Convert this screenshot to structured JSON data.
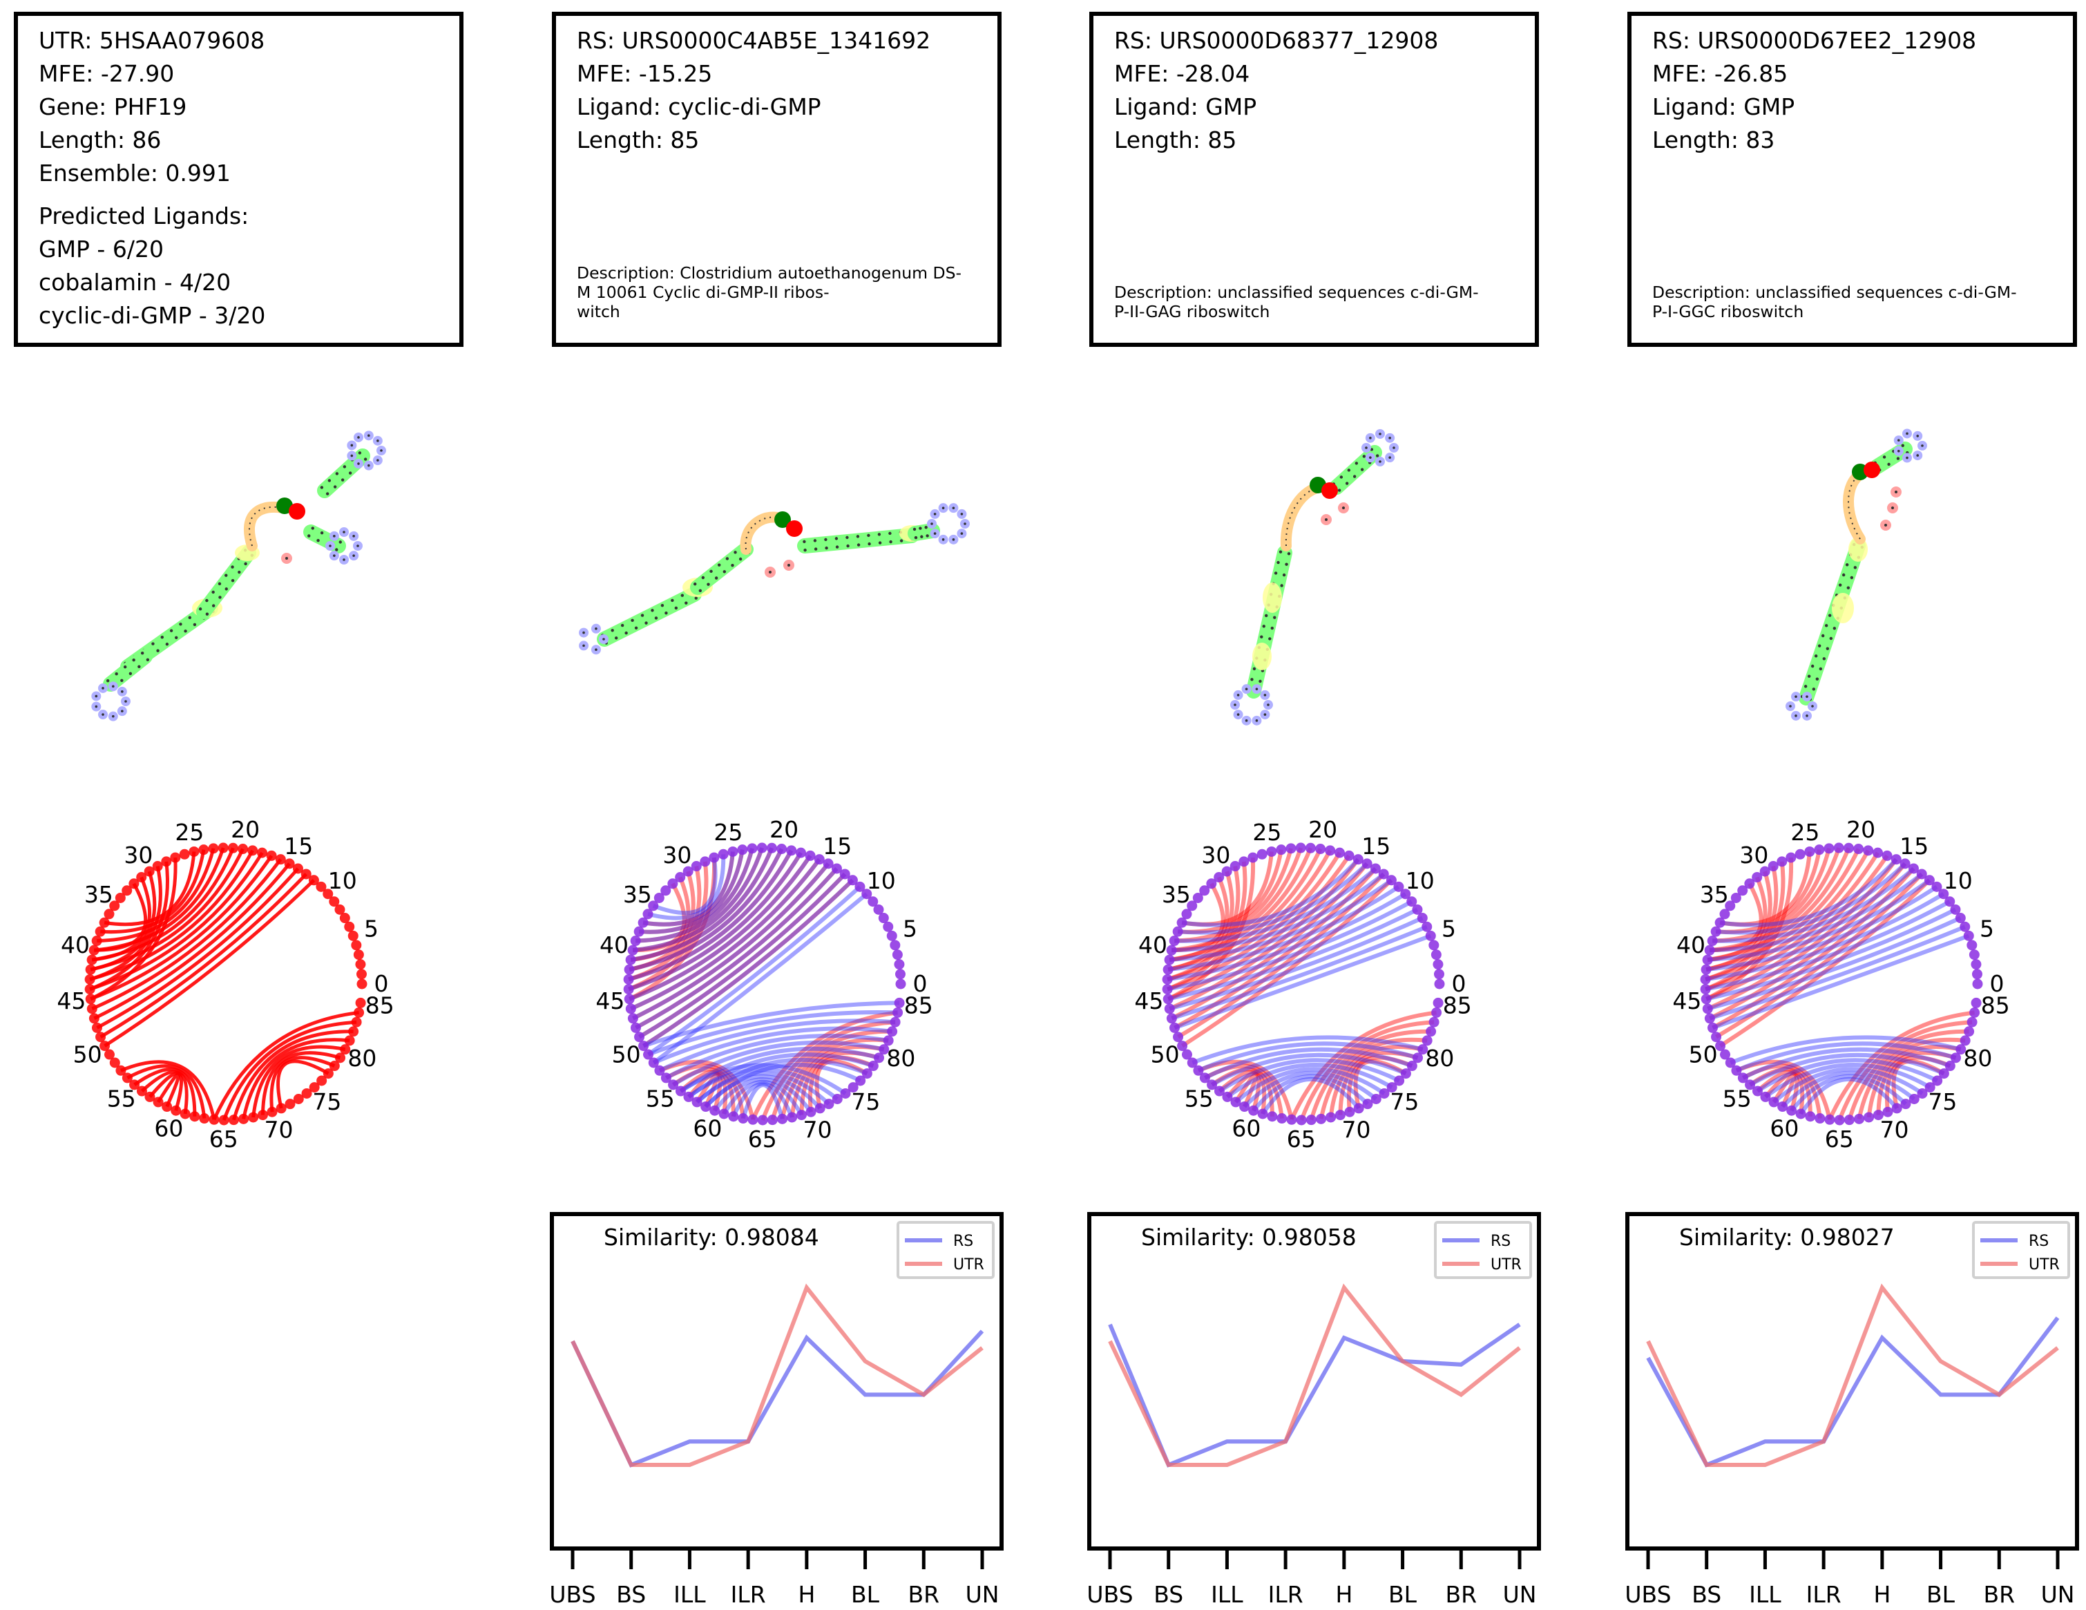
{
  "panels": [
    {
      "info": {
        "lines": [
          "UTR: 5HSAA079608",
          "MFE: -27.90",
          "Gene: PHF19",
          "Length: 86",
          "Ensemble: 0.991"
        ],
        "predicted_header": "Predicted Ligands:",
        "predicted": [
          "GMP - 6/20",
          "cobalamin - 4/20",
          "cyclic-di-GMP - 3/20"
        ]
      }
    },
    {
      "info": {
        "lines": [
          "RS: URS0000C4AB5E_1341692",
          "MFE: -15.25",
          "Ligand: cyclic-di-GMP",
          "Length: 85"
        ],
        "description": [
          "Description: Clostridium autoethanogenum DS-",
          "M 10061 Cyclic di-GMP-II ribos-",
          "witch"
        ]
      }
    },
    {
      "info": {
        "lines": [
          "RS: URS0000D68377_12908",
          "MFE: -28.04",
          "Ligand: GMP",
          "Length: 85"
        ],
        "description": [
          "Description: unclassified sequences c-di-GM-",
          "P-II-GAG riboswitch"
        ]
      }
    },
    {
      "info": {
        "lines": [
          "RS: URS0000D67EE2_12908",
          "MFE: -26.85",
          "Ligand: GMP",
          "Length: 83"
        ],
        "description": [
          "Description: unclassified sequences c-di-GM-",
          "P-I-GGC riboswitch"
        ]
      }
    }
  ],
  "colors": {
    "rs": "#5b5bf0",
    "utr": "#f06a6a",
    "utr_arc": "#ff0000",
    "stem": "#80ff80",
    "hairpin": "#b0b0ff",
    "interior": "#ffff99",
    "multiloop": "#ffd08a",
    "unpaired": "#ffa0a0",
    "start": "#008000",
    "end": "#ff0000",
    "purple": "#8a2be2"
  },
  "arc_diagrams": [
    {
      "ticks": [
        "0",
        "5",
        "10",
        "15",
        "20",
        "25",
        "30",
        "35",
        "40",
        "45",
        "50",
        "55",
        "60",
        "65",
        "70",
        "75",
        "80",
        "85"
      ],
      "mode": "utr"
    },
    {
      "ticks": [
        "0",
        "5",
        "10",
        "15",
        "20",
        "25",
        "30",
        "35",
        "40",
        "45",
        "50",
        "55",
        "60",
        "65",
        "70",
        "75",
        "80",
        "85"
      ],
      "mode": "overlay"
    },
    {
      "ticks": [
        "0",
        "5",
        "10",
        "15",
        "20",
        "25",
        "30",
        "35",
        "40",
        "45",
        "50",
        "55",
        "60",
        "65",
        "70",
        "75",
        "80",
        "85"
      ],
      "mode": "overlay"
    },
    {
      "ticks": [
        "0",
        "5",
        "10",
        "15",
        "20",
        "25",
        "30",
        "35",
        "40",
        "45",
        "50",
        "55",
        "60",
        "65",
        "70",
        "75",
        "80",
        "85"
      ],
      "mode": "overlay"
    }
  ],
  "chart_data": [
    {
      "type": "line",
      "categories": [
        "UBS",
        "BS",
        "ILL",
        "ILR",
        "H",
        "BL",
        "BR",
        "UN"
      ],
      "annotation": "Similarity: 0.98084",
      "series": [
        {
          "name": "RS",
          "values": [
            0.62,
            0.25,
            0.32,
            0.32,
            0.63,
            0.46,
            0.46,
            0.65
          ]
        },
        {
          "name": "UTR",
          "values": [
            0.62,
            0.25,
            0.25,
            0.32,
            0.78,
            0.56,
            0.46,
            0.6
          ]
        }
      ],
      "ylim": [
        0,
        1
      ]
    },
    {
      "type": "line",
      "categories": [
        "UBS",
        "BS",
        "ILL",
        "ILR",
        "H",
        "BL",
        "BR",
        "UN"
      ],
      "annotation": "Similarity: 0.98058",
      "series": [
        {
          "name": "RS",
          "values": [
            0.67,
            0.25,
            0.32,
            0.32,
            0.63,
            0.56,
            0.55,
            0.67
          ]
        },
        {
          "name": "UTR",
          "values": [
            0.62,
            0.25,
            0.25,
            0.32,
            0.78,
            0.56,
            0.46,
            0.6
          ]
        }
      ],
      "ylim": [
        0,
        1
      ]
    },
    {
      "type": "line",
      "categories": [
        "UBS",
        "BS",
        "ILL",
        "ILR",
        "H",
        "BL",
        "BR",
        "UN"
      ],
      "annotation": "Similarity: 0.98027",
      "series": [
        {
          "name": "RS",
          "values": [
            0.57,
            0.25,
            0.32,
            0.32,
            0.63,
            0.46,
            0.46,
            0.69
          ]
        },
        {
          "name": "UTR",
          "values": [
            0.62,
            0.25,
            0.25,
            0.32,
            0.78,
            0.56,
            0.46,
            0.6
          ]
        }
      ],
      "ylim": [
        0,
        1
      ]
    }
  ]
}
